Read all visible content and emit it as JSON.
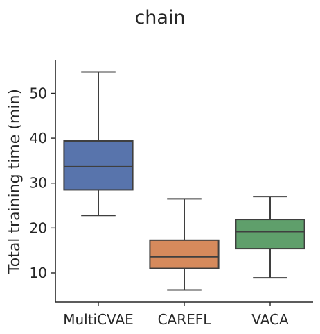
{
  "chart_data": {
    "type": "box",
    "title": "chain",
    "xlabel": "",
    "ylabel": "Total training time (min)",
    "ylim": [
      3.5,
      57.5
    ],
    "yticks": [
      10,
      20,
      30,
      40,
      50
    ],
    "categories": [
      "MultiCVAE",
      "CAREFL",
      "VACA"
    ],
    "boxes": [
      {
        "category": "MultiCVAE",
        "whisker_low": 22.8,
        "q1": 28.5,
        "median": 33.7,
        "q3": 39.4,
        "whisker_high": 54.8,
        "color": "#5874ac"
      },
      {
        "category": "CAREFL",
        "whisker_low": 6.2,
        "q1": 11.0,
        "median": 13.6,
        "q3": 17.3,
        "whisker_high": 26.5,
        "color": "#d68a5c"
      },
      {
        "category": "VACA",
        "whisker_low": 8.9,
        "q1": 15.4,
        "median": 19.2,
        "q3": 21.9,
        "whisker_high": 27.0,
        "color": "#5f9f6b"
      }
    ],
    "line_color": "#3f3f3f",
    "grid": false,
    "legend": "none"
  }
}
